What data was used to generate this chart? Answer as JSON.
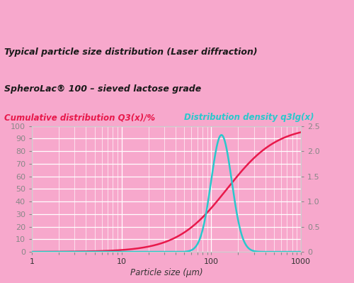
{
  "title_line1": "Typical particle size distribution (Laser diffraction)",
  "title_line2": "SpheroLac® 100 – sieved lactose grade",
  "left_label": "Cumulative distribution Q3(x)/%",
  "right_label": "Distribution density q3lg(x)",
  "xlabel": "Particle size (µm)",
  "background_color": "#F7A8CC",
  "plot_bg_color": "#F7A8CC",
  "title_bg_color": "#F9C8DC",
  "label_row_bg": "#F2A0C4",
  "grid_color": "#FFFFFF",
  "left_color": "#E8194B",
  "right_color": "#29C8CC",
  "left_yticks": [
    0,
    10,
    20,
    30,
    40,
    50,
    60,
    70,
    80,
    90,
    100
  ],
  "right_yticks": [
    0,
    0.5,
    1.0,
    1.5,
    2.0,
    2.5
  ],
  "left_ylim": [
    0,
    100
  ],
  "right_ylim": [
    0,
    2.5
  ],
  "xlim": [
    1,
    1000
  ],
  "figsize": [
    5.0,
    3.99
  ],
  "dpi": 100
}
